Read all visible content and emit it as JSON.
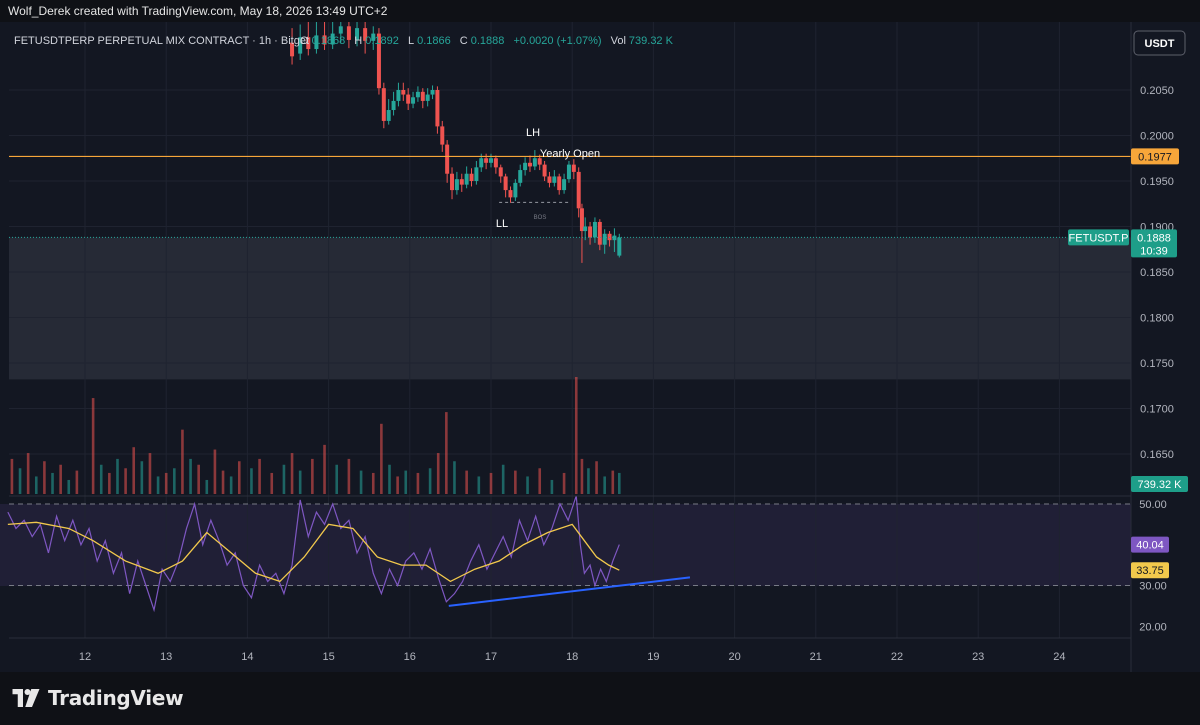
{
  "header": {
    "credit": "Wolf_Derek created with TradingView.com, May 18, 2026 13:49 UTC+2"
  },
  "legend": {
    "symbol": "FETUSDTPERP PERPETUAL MIX CONTRACT · 1h · Bitget",
    "o_label": "O",
    "o_val": "0.1868",
    "h_label": "H",
    "h_val": "0.1892",
    "l_label": "L",
    "l_val": "0.1866",
    "c_label": "C",
    "c_val": "0.1888",
    "change": "+0.0020 (+1.07%)",
    "vol_label": "Vol",
    "vol_val": "739.32 K"
  },
  "currency_button": "USDT",
  "annotations": {
    "lh": "LH",
    "ll": "LL",
    "bos": "BOS",
    "yearly_open": "Yearly Open"
  },
  "tags": {
    "yearly_open_price": "0.1977",
    "symbol_tag": "FETUSDT.P",
    "last_price": "0.1888",
    "countdown": "10:39",
    "volume": "739.32 K",
    "rsi": "40.04",
    "rsi_ma": "33.75"
  },
  "colors": {
    "up": "#26a69a",
    "down": "#ef5350",
    "yearly_open_line": "#f7a63a",
    "rsi_line": "#7e57c2",
    "rsi_ma_line": "#f2c94c",
    "trendline": "#2962ff",
    "zone": "#2a2e39"
  },
  "chart_data": {
    "type": "candlestick",
    "price_axis": {
      "ticks": [
        "0.2050",
        "0.2000",
        "0.1950",
        "0.1900",
        "0.1850",
        "0.1800",
        "0.1750",
        "0.1700",
        "0.1650"
      ],
      "range": [
        0.1625,
        0.2145
      ]
    },
    "rsi_axis": {
      "ticks": [
        "50.00",
        "30.00",
        "20.00"
      ],
      "range": [
        16,
        52
      ]
    },
    "x_axis": {
      "ticks": [
        "12",
        "13",
        "14",
        "15",
        "16",
        "17",
        "18",
        "19",
        "20",
        "21",
        "22",
        "23",
        "24"
      ],
      "range": [
        11.0,
        25.0
      ]
    },
    "levels": {
      "yearly_open": 0.1977,
      "last_price": 0.1888,
      "zone_top": 0.1888,
      "zone_bottom": 0.1732,
      "bos": 0.19265
    },
    "candles": [
      [
        14.55,
        0.2102,
        0.2087,
        0.2118,
        0.2078
      ],
      [
        14.65,
        0.209,
        0.2108,
        0.2122,
        0.2083
      ],
      [
        14.75,
        0.2108,
        0.2095,
        0.2125,
        0.2088
      ],
      [
        14.85,
        0.2095,
        0.211,
        0.2126,
        0.209
      ],
      [
        14.95,
        0.211,
        0.21,
        0.2128,
        0.2094
      ],
      [
        15.05,
        0.21,
        0.2112,
        0.2126,
        0.2095
      ],
      [
        15.15,
        0.2112,
        0.212,
        0.2128,
        0.2102
      ],
      [
        15.25,
        0.212,
        0.2105,
        0.2127,
        0.2096
      ],
      [
        15.35,
        0.2105,
        0.2118,
        0.2126,
        0.2098
      ],
      [
        15.45,
        0.2118,
        0.2104,
        0.2125,
        0.209
      ],
      [
        15.55,
        0.2104,
        0.2112,
        0.212,
        0.2094
      ],
      [
        15.62,
        0.2112,
        0.2052,
        0.2118,
        0.2045
      ],
      [
        15.68,
        0.2052,
        0.2016,
        0.2058,
        0.2008
      ],
      [
        15.74,
        0.2016,
        0.2028,
        0.204,
        0.2012
      ],
      [
        15.8,
        0.2028,
        0.2038,
        0.2048,
        0.2022
      ],
      [
        15.86,
        0.2038,
        0.205,
        0.2058,
        0.2032
      ],
      [
        15.92,
        0.205,
        0.2045,
        0.2058,
        0.2038
      ],
      [
        15.98,
        0.2045,
        0.2035,
        0.2052,
        0.2028
      ],
      [
        16.04,
        0.2035,
        0.2042,
        0.2048,
        0.203
      ],
      [
        16.1,
        0.2042,
        0.2048,
        0.2054,
        0.2037
      ],
      [
        16.16,
        0.2048,
        0.2038,
        0.2052,
        0.203
      ],
      [
        16.22,
        0.2038,
        0.2045,
        0.2052,
        0.2032
      ],
      [
        16.28,
        0.2045,
        0.205,
        0.2055,
        0.204
      ],
      [
        16.34,
        0.205,
        0.201,
        0.2054,
        0.2002
      ],
      [
        16.4,
        0.201,
        0.199,
        0.2016,
        0.1982
      ],
      [
        16.46,
        0.199,
        0.1958,
        0.1995,
        0.1948
      ],
      [
        16.52,
        0.1958,
        0.194,
        0.1965,
        0.193
      ],
      [
        16.58,
        0.194,
        0.1952,
        0.196,
        0.1935
      ],
      [
        16.64,
        0.1952,
        0.1946,
        0.1958,
        0.1938
      ],
      [
        16.7,
        0.1946,
        0.1958,
        0.1966,
        0.1942
      ],
      [
        16.76,
        0.1958,
        0.195,
        0.1964,
        0.1944
      ],
      [
        16.82,
        0.195,
        0.1965,
        0.1972,
        0.1946
      ],
      [
        16.88,
        0.1965,
        0.1975,
        0.198,
        0.196
      ],
      [
        16.94,
        0.1975,
        0.197,
        0.198,
        0.1963
      ],
      [
        17.0,
        0.197,
        0.1975,
        0.198,
        0.1965
      ],
      [
        17.06,
        0.1975,
        0.1965,
        0.1978,
        0.1958
      ],
      [
        17.12,
        0.1965,
        0.1955,
        0.1968,
        0.1948
      ],
      [
        17.18,
        0.1955,
        0.194,
        0.1958,
        0.1932
      ],
      [
        17.24,
        0.194,
        0.1932,
        0.1944,
        0.1926
      ],
      [
        17.3,
        0.1932,
        0.1948,
        0.1952,
        0.1928
      ],
      [
        17.36,
        0.1948,
        0.1962,
        0.1968,
        0.1944
      ],
      [
        17.42,
        0.1962,
        0.197,
        0.1976,
        0.1956
      ],
      [
        17.48,
        0.197,
        0.1966,
        0.1978,
        0.196
      ],
      [
        17.54,
        0.1966,
        0.1975,
        0.1984,
        0.1962
      ],
      [
        17.6,
        0.1975,
        0.1968,
        0.1979,
        0.1962
      ],
      [
        17.66,
        0.1968,
        0.1955,
        0.1972,
        0.195
      ],
      [
        17.72,
        0.1955,
        0.1948,
        0.196,
        0.1943
      ],
      [
        17.78,
        0.1948,
        0.1955,
        0.1962,
        0.1944
      ],
      [
        17.84,
        0.1955,
        0.194,
        0.1958,
        0.1935
      ],
      [
        17.9,
        0.194,
        0.1952,
        0.1958,
        0.1936
      ],
      [
        17.96,
        0.1952,
        0.1968,
        0.1972,
        0.1948
      ],
      [
        18.02,
        0.1968,
        0.196,
        0.1974,
        0.1952
      ],
      [
        18.08,
        0.196,
        0.192,
        0.1965,
        0.191
      ],
      [
        18.12,
        0.192,
        0.1895,
        0.1925,
        0.186
      ],
      [
        18.16,
        0.1895,
        0.19,
        0.191,
        0.1885
      ],
      [
        18.22,
        0.19,
        0.1888,
        0.1905,
        0.188
      ],
      [
        18.28,
        0.1888,
        0.1905,
        0.191,
        0.1882
      ],
      [
        18.34,
        0.1905,
        0.188,
        0.1908,
        0.1874
      ],
      [
        18.4,
        0.188,
        0.1892,
        0.1897,
        0.187
      ],
      [
        18.46,
        0.1892,
        0.1885,
        0.1895,
        0.1878
      ],
      [
        18.52,
        0.1885,
        0.189,
        0.1898,
        0.1872
      ],
      [
        18.58,
        0.1868,
        0.1888,
        0.1892,
        0.1866
      ]
    ],
    "volume": [
      [
        11.1,
        0.3,
        "d"
      ],
      [
        11.2,
        0.22,
        "u"
      ],
      [
        11.3,
        0.35,
        "d"
      ],
      [
        11.4,
        0.15,
        "u"
      ],
      [
        11.5,
        0.28,
        "d"
      ],
      [
        11.6,
        0.18,
        "u"
      ],
      [
        11.7,
        0.25,
        "d"
      ],
      [
        11.8,
        0.12,
        "u"
      ],
      [
        11.9,
        0.2,
        "d"
      ],
      [
        12.1,
        0.82,
        "d"
      ],
      [
        12.2,
        0.25,
        "u"
      ],
      [
        12.3,
        0.18,
        "d"
      ],
      [
        12.4,
        0.3,
        "u"
      ],
      [
        12.5,
        0.22,
        "d"
      ],
      [
        12.6,
        0.4,
        "d"
      ],
      [
        12.7,
        0.28,
        "u"
      ],
      [
        12.8,
        0.35,
        "d"
      ],
      [
        12.9,
        0.15,
        "u"
      ],
      [
        13.0,
        0.18,
        "d"
      ],
      [
        13.1,
        0.22,
        "u"
      ],
      [
        13.2,
        0.55,
        "d"
      ],
      [
        13.3,
        0.3,
        "u"
      ],
      [
        13.4,
        0.25,
        "d"
      ],
      [
        13.5,
        0.12,
        "u"
      ],
      [
        13.6,
        0.38,
        "d"
      ],
      [
        13.7,
        0.2,
        "d"
      ],
      [
        13.8,
        0.15,
        "u"
      ],
      [
        13.9,
        0.28,
        "d"
      ],
      [
        14.05,
        0.22,
        "u"
      ],
      [
        14.15,
        0.3,
        "d"
      ],
      [
        14.3,
        0.18,
        "d"
      ],
      [
        14.45,
        0.25,
        "u"
      ],
      [
        14.55,
        0.35,
        "d"
      ],
      [
        14.65,
        0.2,
        "u"
      ],
      [
        14.8,
        0.3,
        "d"
      ],
      [
        14.95,
        0.42,
        "d"
      ],
      [
        15.1,
        0.25,
        "u"
      ],
      [
        15.25,
        0.3,
        "d"
      ],
      [
        15.4,
        0.2,
        "u"
      ],
      [
        15.55,
        0.18,
        "d"
      ],
      [
        15.65,
        0.6,
        "d"
      ],
      [
        15.75,
        0.25,
        "u"
      ],
      [
        15.85,
        0.15,
        "d"
      ],
      [
        15.95,
        0.2,
        "u"
      ],
      [
        16.1,
        0.18,
        "d"
      ],
      [
        16.25,
        0.22,
        "u"
      ],
      [
        16.35,
        0.35,
        "d"
      ],
      [
        16.45,
        0.7,
        "d"
      ],
      [
        16.55,
        0.28,
        "u"
      ],
      [
        16.7,
        0.2,
        "d"
      ],
      [
        16.85,
        0.15,
        "u"
      ],
      [
        17.0,
        0.18,
        "d"
      ],
      [
        17.15,
        0.25,
        "u"
      ],
      [
        17.3,
        0.2,
        "d"
      ],
      [
        17.45,
        0.15,
        "u"
      ],
      [
        17.6,
        0.22,
        "d"
      ],
      [
        17.75,
        0.12,
        "u"
      ],
      [
        17.9,
        0.18,
        "d"
      ],
      [
        18.05,
        1.0,
        "d"
      ],
      [
        18.12,
        0.3,
        "d"
      ],
      [
        18.2,
        0.22,
        "u"
      ],
      [
        18.3,
        0.28,
        "d"
      ],
      [
        18.4,
        0.15,
        "u"
      ],
      [
        18.5,
        0.2,
        "d"
      ],
      [
        18.58,
        0.18,
        "u"
      ]
    ],
    "rsi": [
      [
        11.05,
        48
      ],
      [
        11.15,
        44
      ],
      [
        11.25,
        46
      ],
      [
        11.35,
        42
      ],
      [
        11.45,
        45
      ],
      [
        11.55,
        38
      ],
      [
        11.65,
        47
      ],
      [
        11.75,
        41
      ],
      [
        11.85,
        46
      ],
      [
        11.95,
        40
      ],
      [
        12.05,
        44
      ],
      [
        12.15,
        36
      ],
      [
        12.25,
        41
      ],
      [
        12.35,
        33
      ],
      [
        12.45,
        38
      ],
      [
        12.55,
        28
      ],
      [
        12.65,
        36
      ],
      [
        12.75,
        30
      ],
      [
        12.85,
        24
      ],
      [
        12.95,
        34
      ],
      [
        13.05,
        31
      ],
      [
        13.15,
        36
      ],
      [
        13.25,
        44
      ],
      [
        13.35,
        50
      ],
      [
        13.45,
        40
      ],
      [
        13.55,
        46
      ],
      [
        13.65,
        41
      ],
      [
        13.75,
        35
      ],
      [
        13.85,
        38
      ],
      [
        13.95,
        30
      ],
      [
        14.05,
        27
      ],
      [
        14.15,
        35
      ],
      [
        14.25,
        31
      ],
      [
        14.35,
        33
      ],
      [
        14.45,
        28
      ],
      [
        14.55,
        35
      ],
      [
        14.65,
        51
      ],
      [
        14.75,
        42
      ],
      [
        14.85,
        48
      ],
      [
        14.95,
        45
      ],
      [
        15.05,
        50
      ],
      [
        15.15,
        44
      ],
      [
        15.25,
        46
      ],
      [
        15.35,
        38
      ],
      [
        15.45,
        42
      ],
      [
        15.55,
        33
      ],
      [
        15.65,
        28
      ],
      [
        15.75,
        34
      ],
      [
        15.85,
        30
      ],
      [
        15.95,
        36
      ],
      [
        16.05,
        38
      ],
      [
        16.15,
        34
      ],
      [
        16.25,
        39
      ],
      [
        16.35,
        32
      ],
      [
        16.45,
        26
      ],
      [
        16.55,
        28
      ],
      [
        16.65,
        31
      ],
      [
        16.75,
        36
      ],
      [
        16.85,
        40
      ],
      [
        16.95,
        34
      ],
      [
        17.05,
        38
      ],
      [
        17.15,
        42
      ],
      [
        17.25,
        37
      ],
      [
        17.35,
        46
      ],
      [
        17.45,
        41
      ],
      [
        17.55,
        47
      ],
      [
        17.65,
        40
      ],
      [
        17.75,
        44
      ],
      [
        17.85,
        50
      ],
      [
        17.95,
        46
      ],
      [
        18.05,
        52
      ],
      [
        18.1,
        40
      ],
      [
        18.15,
        33
      ],
      [
        18.22,
        35
      ],
      [
        18.28,
        30
      ],
      [
        18.35,
        34
      ],
      [
        18.42,
        31
      ],
      [
        18.5,
        36
      ],
      [
        18.58,
        40.04
      ]
    ],
    "rsi_ma": [
      [
        11.05,
        45
      ],
      [
        11.4,
        45.5
      ],
      [
        11.8,
        44
      ],
      [
        12.1,
        41
      ],
      [
        12.5,
        36
      ],
      [
        12.9,
        33
      ],
      [
        13.2,
        36
      ],
      [
        13.5,
        43
      ],
      [
        13.8,
        38
      ],
      [
        14.1,
        33
      ],
      [
        14.4,
        31
      ],
      [
        14.7,
        37
      ],
      [
        15.0,
        45
      ],
      [
        15.3,
        44
      ],
      [
        15.6,
        37
      ],
      [
        15.9,
        35
      ],
      [
        16.2,
        35
      ],
      [
        16.5,
        31
      ],
      [
        16.8,
        34
      ],
      [
        17.1,
        36
      ],
      [
        17.4,
        40
      ],
      [
        17.7,
        43
      ],
      [
        18.0,
        45
      ],
      [
        18.15,
        41
      ],
      [
        18.3,
        37
      ],
      [
        18.45,
        35
      ],
      [
        18.58,
        33.75
      ]
    ],
    "trendline": [
      [
        16.48,
        25.0
      ],
      [
        19.45,
        32.0
      ]
    ]
  },
  "axis_labels": {
    "price_ticks": [
      "0.2050",
      "0.2000",
      "0.1950",
      "0.1900",
      "0.1850",
      "0.1800",
      "0.1750",
      "0.1700",
      "0.1650"
    ],
    "rsi_ticks": [
      "50.00",
      "30.00",
      "20.00"
    ],
    "dates": [
      "12",
      "13",
      "14",
      "15",
      "16",
      "17",
      "18",
      "19",
      "20",
      "21",
      "22",
      "23",
      "24"
    ]
  },
  "brand": {
    "name": "TradingView"
  }
}
